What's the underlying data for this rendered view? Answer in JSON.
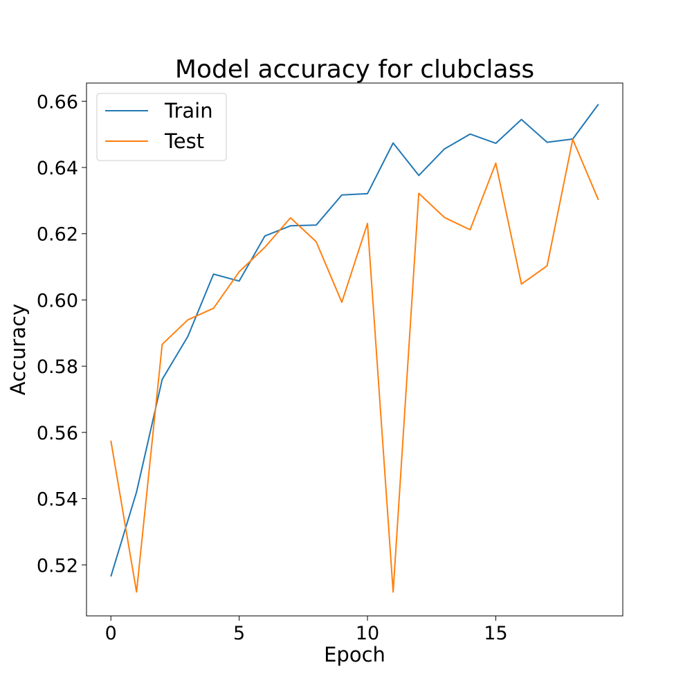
{
  "chart_data": {
    "type": "line",
    "title": "Model accuracy for clubclass",
    "xlabel": "Epoch",
    "ylabel": "Accuracy",
    "x": [
      0,
      1,
      2,
      3,
      4,
      5,
      6,
      7,
      8,
      9,
      10,
      11,
      12,
      13,
      14,
      15,
      16,
      17,
      18,
      19
    ],
    "xlim": [
      -0.95,
      19.95
    ],
    "ylim": [
      0.5046,
      0.6655
    ],
    "xticks": [
      0,
      5,
      10,
      15
    ],
    "xtick_labels": [
      "0",
      "5",
      "10",
      "15"
    ],
    "yticks": [
      0.52,
      0.54,
      0.56,
      0.58,
      0.6,
      0.62,
      0.64,
      0.66
    ],
    "ytick_labels": [
      "0.52",
      "0.54",
      "0.56",
      "0.58",
      "0.60",
      "0.62",
      "0.64",
      "0.66"
    ],
    "grid": false,
    "legend_position": "top-left",
    "series": [
      {
        "name": "Train",
        "color": "#1f77b4",
        "values": [
          0.5165,
          0.542,
          0.576,
          0.589,
          0.6078,
          0.6057,
          0.6193,
          0.6224,
          0.6226,
          0.6317,
          0.6321,
          0.6474,
          0.6376,
          0.6456,
          0.6501,
          0.6473,
          0.6545,
          0.6476,
          0.6486,
          0.6591
        ]
      },
      {
        "name": "Test",
        "color": "#ff7f0e",
        "values": [
          0.5575,
          0.5118,
          0.5866,
          0.594,
          0.5975,
          0.6085,
          0.6159,
          0.6248,
          0.6176,
          0.5993,
          0.6231,
          0.5118,
          0.6322,
          0.6249,
          0.6212,
          0.6413,
          0.6048,
          0.6103,
          0.6485,
          0.6302
        ]
      }
    ]
  }
}
